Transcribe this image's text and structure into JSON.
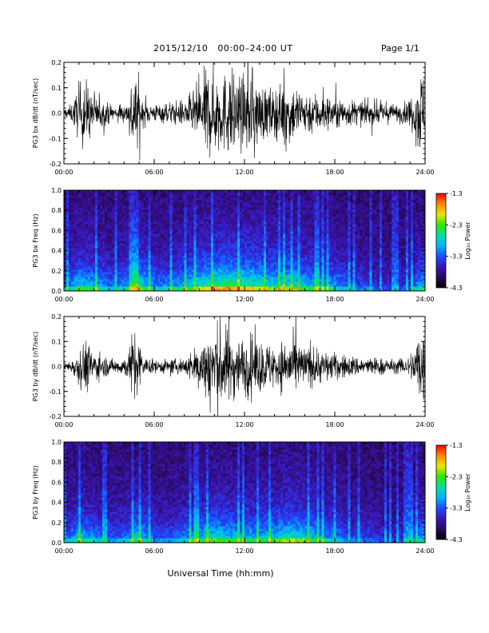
{
  "header": {
    "date_range": "2015/12/10   00:00–24:00 UT",
    "page": "Page 1/1"
  },
  "colors": {
    "trace": "#000000",
    "colormap": [
      "#000000",
      "#2a0a5e",
      "#3a16b8",
      "#1e4cff",
      "#00b4ff",
      "#00e0a0",
      "#2ee600",
      "#e8e800",
      "#ff8800",
      "#ff0000"
    ]
  },
  "chart_data": [
    {
      "type": "line",
      "name": "bx-waveform",
      "ylabel": "PG3 bx dB/dt (nT/sec)",
      "xlim": [
        0,
        24
      ],
      "ylim": [
        -0.2,
        0.2
      ],
      "yticks": [
        "-0.2",
        "-0.1",
        "0.0",
        "0.1",
        "0.2"
      ],
      "xticks": [
        "00:00",
        "06:00",
        "12:00",
        "18:00",
        "24:00"
      ],
      "envelope": {
        "hours": [
          0,
          0.5,
          1.0,
          1.4,
          1.8,
          2.5,
          3.5,
          4.3,
          4.6,
          4.8,
          5.2,
          6.0,
          7.0,
          8.0,
          8.5,
          9.0,
          9.5,
          10.0,
          10.5,
          11.0,
          11.5,
          12.0,
          12.5,
          13.0,
          14.0,
          15.0,
          15.5,
          16.0,
          17.0,
          18.0,
          19.0,
          20.0,
          21.0,
          22.0,
          22.8,
          23.3,
          23.6,
          23.9,
          24.0
        ],
        "amplitude": [
          0.02,
          0.04,
          0.12,
          0.16,
          0.1,
          0.06,
          0.03,
          0.05,
          0.2,
          0.2,
          0.06,
          0.04,
          0.05,
          0.06,
          0.09,
          0.14,
          0.2,
          0.2,
          0.17,
          0.2,
          0.18,
          0.15,
          0.2,
          0.13,
          0.11,
          0.14,
          0.12,
          0.1,
          0.09,
          0.07,
          0.06,
          0.05,
          0.05,
          0.04,
          0.05,
          0.1,
          0.2,
          0.2,
          0.05
        ]
      }
    },
    {
      "type": "heatmap",
      "name": "bx-spectrogram",
      "ylabel": "PG3 bx Freq (Hz)",
      "xlim": [
        0,
        24
      ],
      "ylim": [
        0,
        1.0
      ],
      "yticks": [
        "0.0",
        "0.2",
        "0.4",
        "0.6",
        "0.8",
        "1.0"
      ],
      "xticks": [
        "00:00",
        "06:00",
        "12:00",
        "18:00",
        "24:00"
      ],
      "z_range": [
        -4.3,
        -1.3
      ],
      "colorbar_label": "Log₁₀ Power",
      "colorbar_ticks": [
        "-1.3",
        "-2.3",
        "-3.3",
        "-4.3"
      ],
      "activity_hours": [
        0,
        1,
        2,
        3,
        4,
        5,
        6,
        7,
        8,
        9,
        10,
        11,
        12,
        13,
        14,
        15,
        16,
        17,
        18,
        19,
        20,
        21,
        22,
        23,
        24
      ],
      "activity_level": [
        0.35,
        0.6,
        0.55,
        0.4,
        0.45,
        0.7,
        0.45,
        0.45,
        0.55,
        0.7,
        0.8,
        0.85,
        0.8,
        0.75,
        0.65,
        0.7,
        0.6,
        0.55,
        0.5,
        0.35,
        0.3,
        0.25,
        0.2,
        0.3,
        0.6
      ]
    },
    {
      "type": "line",
      "name": "by-waveform",
      "ylabel": "PG3 by dB/dt (nT/sec)",
      "xlim": [
        0,
        24
      ],
      "ylim": [
        -0.2,
        0.2
      ],
      "yticks": [
        "-0.2",
        "-0.1",
        "0.0",
        "0.1",
        "0.2"
      ],
      "xticks": [
        "00:00",
        "06:00",
        "12:00",
        "18:00",
        "24:00"
      ],
      "envelope": {
        "hours": [
          0,
          0.5,
          1.0,
          1.4,
          1.8,
          2.5,
          3.5,
          4.3,
          4.6,
          4.8,
          5.2,
          6.0,
          7.0,
          8.0,
          8.5,
          9.0,
          9.5,
          10.0,
          10.5,
          11.0,
          11.5,
          12.0,
          12.5,
          13.0,
          14.0,
          15.0,
          15.5,
          16.0,
          17.0,
          18.0,
          19.0,
          20.0,
          21.0,
          22.0,
          22.8,
          23.3,
          23.6,
          23.9,
          24.0
        ],
        "amplitude": [
          0.015,
          0.03,
          0.08,
          0.13,
          0.08,
          0.05,
          0.03,
          0.06,
          0.18,
          0.2,
          0.05,
          0.03,
          0.03,
          0.04,
          0.07,
          0.11,
          0.16,
          0.2,
          0.2,
          0.16,
          0.14,
          0.13,
          0.15,
          0.12,
          0.1,
          0.13,
          0.12,
          0.09,
          0.08,
          0.06,
          0.05,
          0.04,
          0.04,
          0.03,
          0.04,
          0.09,
          0.2,
          0.2,
          0.04
        ]
      }
    },
    {
      "type": "heatmap",
      "name": "by-spectrogram",
      "ylabel": "PG3 by Freq (Hz)",
      "xlim": [
        0,
        24
      ],
      "ylim": [
        0,
        1.0
      ],
      "yticks": [
        "0.0",
        "0.2",
        "0.4",
        "0.6",
        "0.8",
        "1.0"
      ],
      "xticks": [
        "00:00",
        "06:00",
        "12:00",
        "18:00",
        "24:00"
      ],
      "xlabel": "Universal Time (hh:mm)",
      "z_range": [
        -4.3,
        -1.3
      ],
      "colorbar_label": "Log₁₀ Power",
      "colorbar_ticks": [
        "-1.3",
        "-2.3",
        "-3.3",
        "-4.3"
      ],
      "activity_hours": [
        0,
        1,
        2,
        3,
        4,
        5,
        6,
        7,
        8,
        9,
        10,
        11,
        12,
        13,
        14,
        15,
        16,
        17,
        18,
        19,
        20,
        21,
        22,
        23,
        24
      ],
      "activity_level": [
        0.3,
        0.55,
        0.45,
        0.35,
        0.4,
        0.6,
        0.35,
        0.35,
        0.45,
        0.55,
        0.65,
        0.6,
        0.55,
        0.55,
        0.6,
        0.7,
        0.65,
        0.5,
        0.45,
        0.3,
        0.3,
        0.25,
        0.2,
        0.3,
        0.55
      ]
    }
  ]
}
